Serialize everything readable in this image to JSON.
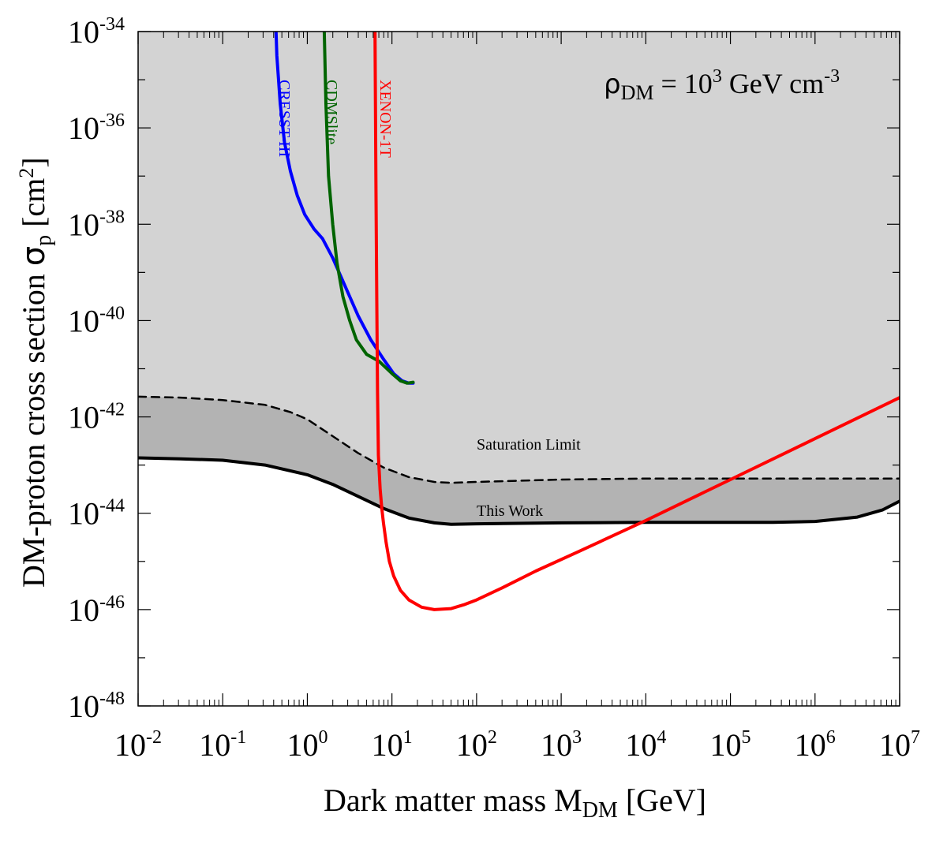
{
  "chart_data": {
    "type": "line",
    "xlabel": {
      "main": "Dark matter mass M",
      "sub": "DM",
      "unit": " [GeV]"
    },
    "ylabel": {
      "main": "DM-proton cross section ",
      "sym": "σ",
      "sub": "p",
      "unit": " [cm",
      "unit_sup": "2",
      "unit_end": "]"
    },
    "x_scale": "log10",
    "y_scale": "log10",
    "xlim": [
      -2,
      7
    ],
    "ylim": [
      -48,
      -34
    ],
    "x_ticks": [
      {
        "exp": -2,
        "base": "10",
        "sup": "-2"
      },
      {
        "exp": -1,
        "base": "10",
        "sup": "-1"
      },
      {
        "exp": 0,
        "base": "10",
        "sup": "0"
      },
      {
        "exp": 1,
        "base": "10",
        "sup": "1"
      },
      {
        "exp": 2,
        "base": "10",
        "sup": "2"
      },
      {
        "exp": 3,
        "base": "10",
        "sup": "3"
      },
      {
        "exp": 4,
        "base": "10",
        "sup": "4"
      },
      {
        "exp": 5,
        "base": "10",
        "sup": "5"
      },
      {
        "exp": 6,
        "base": "10",
        "sup": "6"
      },
      {
        "exp": 7,
        "base": "10",
        "sup": "7"
      }
    ],
    "y_ticks": [
      {
        "exp": -34,
        "base": "10",
        "sup": "-34"
      },
      {
        "exp": -36,
        "base": "10",
        "sup": "-36"
      },
      {
        "exp": -38,
        "base": "10",
        "sup": "-38"
      },
      {
        "exp": -40,
        "base": "10",
        "sup": "-40"
      },
      {
        "exp": -42,
        "base": "10",
        "sup": "-42"
      },
      {
        "exp": -44,
        "base": "10",
        "sup": "-44"
      },
      {
        "exp": -46,
        "base": "10",
        "sup": "-46"
      },
      {
        "exp": -48,
        "base": "10",
        "sup": "-48"
      }
    ],
    "annotation": {
      "sym": "ρ",
      "sub": "DM",
      "text": " = 10",
      "sup": "3",
      "text2": " GeV cm",
      "sup2": "-3"
    },
    "colors": {
      "light_region": "#d3d3d3",
      "dark_band": "#b3b3b3",
      "cresst": "#0000ff",
      "cdms": "#006400",
      "xenon": "#ff0000",
      "black": "#000000"
    },
    "series": [
      {
        "name": "Saturation Limit",
        "style": "dashed",
        "x": [
          -2,
          -1.5,
          -1,
          -0.5,
          -0.2,
          0,
          0.3,
          0.6,
          0.9,
          1.2,
          1.5,
          1.7,
          2,
          3,
          4,
          5,
          6,
          7
        ],
        "y": [
          -41.58,
          -41.6,
          -41.65,
          -41.75,
          -41.9,
          -42.05,
          -42.4,
          -42.75,
          -43.05,
          -43.25,
          -43.35,
          -43.37,
          -43.35,
          -43.3,
          -43.28,
          -43.28,
          -43.28,
          -43.28
        ]
      },
      {
        "name": "This Work",
        "style": "solid",
        "x": [
          -2,
          -1.5,
          -1,
          -0.5,
          0,
          0.3,
          0.6,
          0.9,
          1.2,
          1.5,
          1.7,
          2,
          3,
          4,
          5,
          5.5,
          6,
          6.5,
          6.8,
          7
        ],
        "y": [
          -42.85,
          -42.87,
          -42.9,
          -43.0,
          -43.2,
          -43.4,
          -43.65,
          -43.9,
          -44.1,
          -44.2,
          -44.23,
          -44.22,
          -44.2,
          -44.19,
          -44.19,
          -44.19,
          -44.17,
          -44.08,
          -43.93,
          -43.75
        ]
      },
      {
        "name": "CRESST-III",
        "style": "solid",
        "x": [
          -0.37,
          -0.36,
          -0.32,
          -0.27,
          -0.2,
          -0.12,
          -0.03,
          0.08,
          0.18,
          0.3,
          0.45,
          0.6,
          0.75,
          0.9,
          1.02,
          1.12,
          1.2,
          1.25
        ],
        "y": [
          -34.0,
          -34.5,
          -35.5,
          -36.3,
          -36.9,
          -37.4,
          -37.8,
          -38.1,
          -38.3,
          -38.7,
          -39.3,
          -39.9,
          -40.4,
          -40.8,
          -41.1,
          -41.25,
          -41.3,
          -41.3
        ]
      },
      {
        "name": "CDMSlite",
        "style": "solid",
        "x": [
          0.2,
          0.22,
          0.25,
          0.3,
          0.35,
          0.42,
          0.5,
          0.58,
          0.7,
          0.85,
          1.0,
          1.1,
          1.18,
          1.25
        ],
        "y": [
          -34.0,
          -35.5,
          -37.0,
          -38.0,
          -38.8,
          -39.5,
          -40.0,
          -40.4,
          -40.7,
          -40.85,
          -41.1,
          -41.25,
          -41.3,
          -41.28
        ]
      },
      {
        "name": "XENON-1T",
        "style": "solid",
        "x": [
          0.8,
          0.81,
          0.82,
          0.83,
          0.84,
          0.86,
          0.88,
          0.9,
          0.93,
          0.97,
          1.02,
          1.1,
          1.2,
          1.35,
          1.5,
          1.7,
          1.85,
          2.0,
          2.3,
          2.7,
          3.2,
          4,
          5,
          6,
          7
        ],
        "y": [
          -34.0,
          -37.0,
          -39.5,
          -41.5,
          -42.8,
          -43.5,
          -43.9,
          -44.2,
          -44.6,
          -45.0,
          -45.3,
          -45.6,
          -45.8,
          -45.95,
          -46.0,
          -45.98,
          -45.9,
          -45.8,
          -45.55,
          -45.2,
          -44.8,
          -44.15,
          -43.3,
          -42.45,
          -41.6
        ]
      }
    ],
    "labels": {
      "cresst": "CRESST-III",
      "cdms": "CDMSlite",
      "xenon": "XENON-1T",
      "saturation": "Saturation Limit",
      "this_work": "This Work"
    }
  }
}
